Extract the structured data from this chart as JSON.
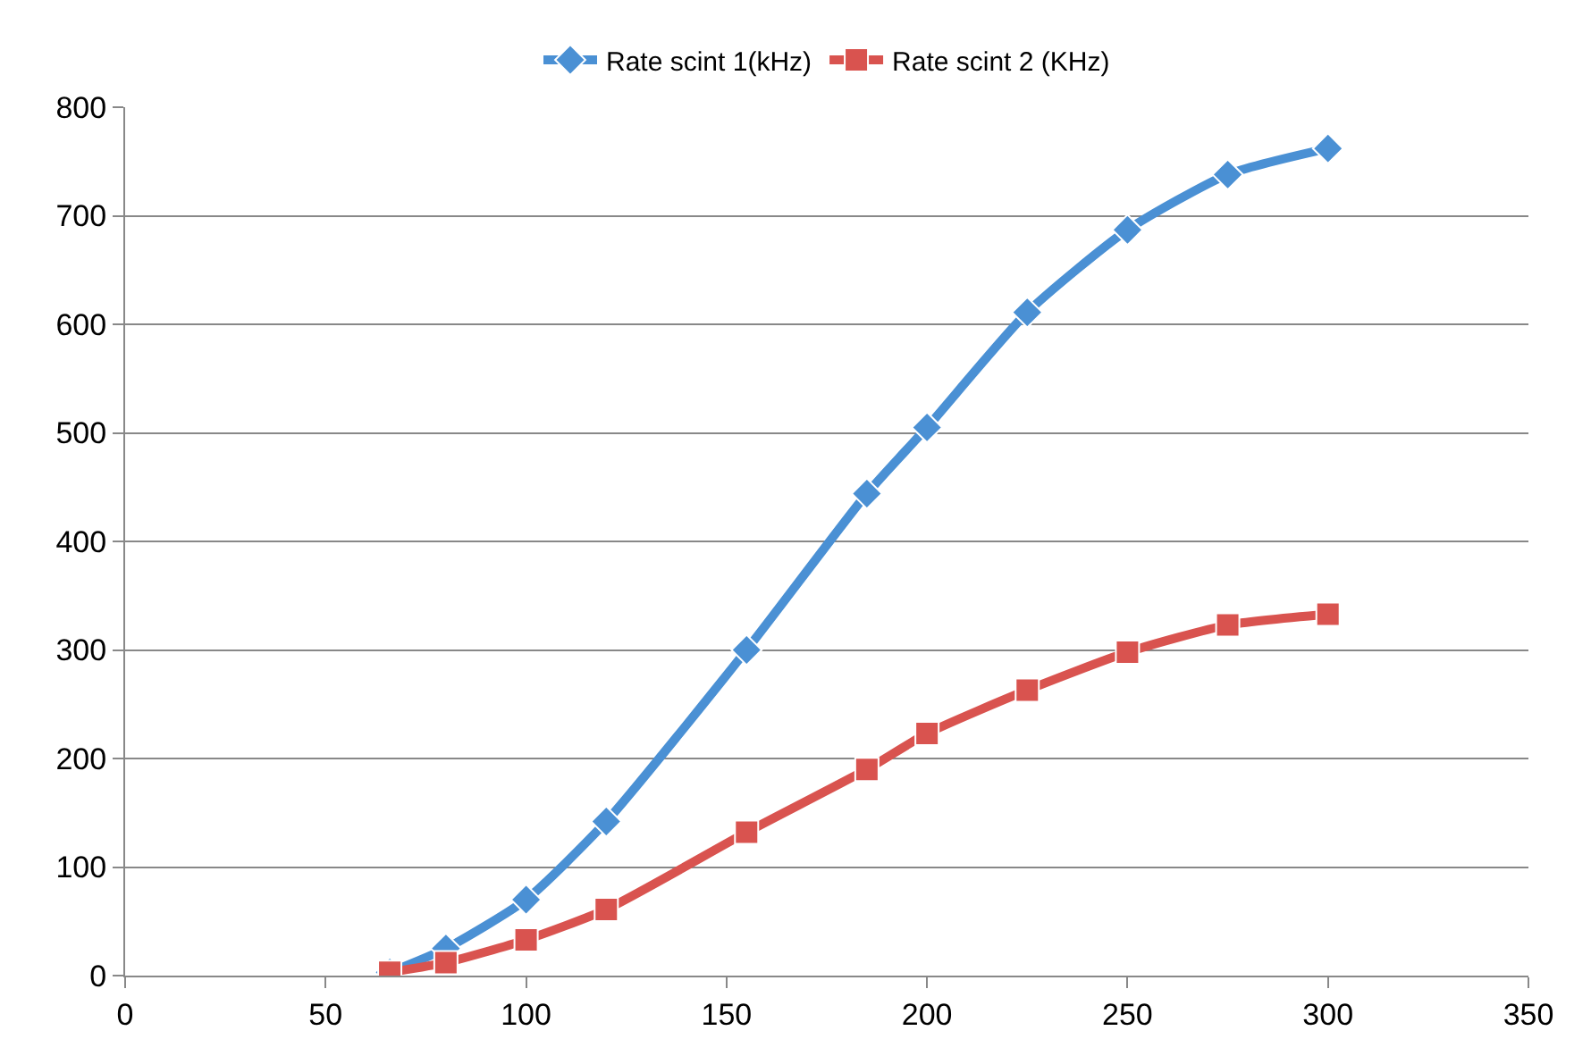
{
  "chart_data": {
    "type": "line",
    "x": [
      66,
      80,
      100,
      120,
      155,
      185,
      200,
      225,
      250,
      275,
      300
    ],
    "series": [
      {
        "name": "Rate scint 1(kHz)",
        "color": "#4a90d4",
        "marker": "diamond",
        "values": [
          3,
          25,
          70,
          142,
          300,
          444,
          505,
          611,
          687,
          738,
          762
        ]
      },
      {
        "name": "Rate scint 2 (KHz)",
        "color": "#d9534f",
        "marker": "square",
        "values": [
          3,
          12,
          33,
          61,
          132,
          190,
          223,
          263,
          298,
          323,
          333
        ]
      }
    ],
    "xlim": [
      0,
      350
    ],
    "xticks": [
      0,
      50,
      100,
      150,
      200,
      250,
      300,
      350
    ],
    "ylim": [
      0,
      800
    ],
    "yticks": [
      0,
      100,
      200,
      300,
      400,
      500,
      600,
      700,
      800
    ],
    "grid": "y",
    "legend": "top",
    "line_style": "solid"
  }
}
